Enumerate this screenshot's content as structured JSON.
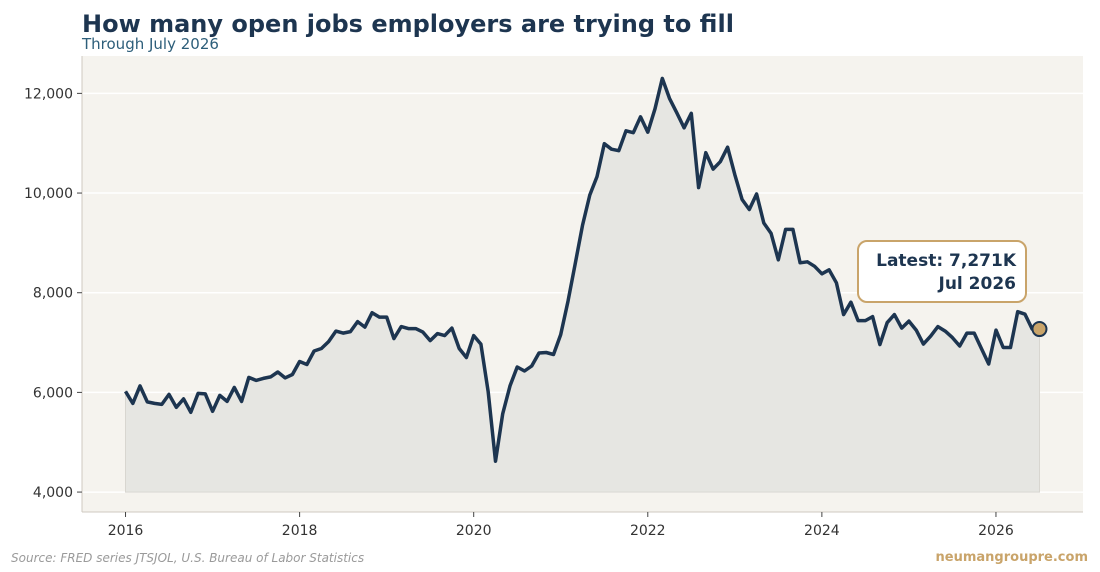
{
  "header": {
    "title": "How many open jobs employers are trying to fill",
    "subtitle": "Through July 2026"
  },
  "footer": {
    "source": "Source: FRED series JTSJOL, U.S. Bureau of Labor Statistics",
    "brand": "neumangroupre.com"
  },
  "callout": {
    "line1": "Latest: 7,271K",
    "line2": "Jul 2026"
  },
  "colors": {
    "line": "#1d3550",
    "area": "#e6e6e2",
    "plot_bg": "#f5f3ee",
    "accent": "#c9a46a",
    "grid": "#ffffff"
  },
  "chart_data": {
    "type": "area",
    "x_start": "2016-01",
    "x_end": "2026-07",
    "frequency": "monthly",
    "xlim": [
      2015.5,
      2027.0
    ],
    "ylim": [
      3600,
      12750
    ],
    "grid": "horizontal",
    "x_ticks": [
      {
        "value": 2016,
        "label": "2016"
      },
      {
        "value": 2018,
        "label": "2018"
      },
      {
        "value": 2020,
        "label": "2020"
      },
      {
        "value": 2022,
        "label": "2022"
      },
      {
        "value": 2024,
        "label": "2024"
      },
      {
        "value": 2026,
        "label": "2026"
      }
    ],
    "y_ticks": [
      {
        "value": 4000,
        "label": "4,000"
      },
      {
        "value": 6000,
        "label": "6,000"
      },
      {
        "value": 8000,
        "label": "8,000"
      },
      {
        "value": 10000,
        "label": "10,000"
      },
      {
        "value": 12000,
        "label": "12,000"
      }
    ],
    "values": [
      6020,
      5780,
      6130,
      5810,
      5780,
      5760,
      5960,
      5700,
      5870,
      5600,
      5980,
      5970,
      5620,
      5940,
      5820,
      6100,
      5820,
      6300,
      6240,
      6280,
      6310,
      6410,
      6290,
      6360,
      6620,
      6560,
      6830,
      6880,
      7020,
      7230,
      7190,
      7220,
      7420,
      7310,
      7600,
      7510,
      7510,
      7080,
      7320,
      7280,
      7280,
      7210,
      7040,
      7180,
      7140,
      7290,
      6880,
      6700,
      7140,
      6970,
      6010,
      4620,
      5570,
      6130,
      6510,
      6430,
      6530,
      6790,
      6800,
      6760,
      7160,
      7830,
      8580,
      9350,
      9960,
      10330,
      10990,
      10880,
      10850,
      11250,
      11210,
      11530,
      11220,
      11690,
      12300,
      11900,
      11610,
      11310,
      11600,
      10110,
      10810,
      10480,
      10630,
      10920,
      10370,
      9870,
      9670,
      9980,
      9400,
      9190,
      8660,
      9270,
      9270,
      8600,
      8620,
      8530,
      8380,
      8460,
      8200,
      7560,
      7810,
      7440,
      7440,
      7520,
      6960,
      7400,
      7560,
      7290,
      7430,
      7250,
      6970,
      7130,
      7320,
      7230,
      7100,
      6930,
      7190,
      7190,
      6880,
      6570,
      7250,
      6900,
      6900,
      7620,
      7570,
      7271,
      7271
    ],
    "latest": {
      "label": "Jul 2026",
      "value": 7271
    }
  }
}
